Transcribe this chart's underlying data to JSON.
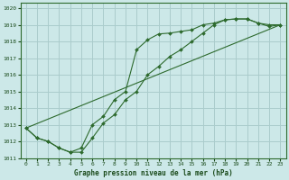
{
  "title": "Graphe pression niveau de la mer (hPa)",
  "bg_color": "#cce8e8",
  "grid_color": "#aacccc",
  "line_color": "#2d6a2d",
  "xlim": [
    -0.5,
    23.5
  ],
  "ylim": [
    1011,
    1020.3
  ],
  "xticks": [
    0,
    1,
    2,
    3,
    4,
    5,
    6,
    7,
    8,
    9,
    10,
    11,
    12,
    13,
    14,
    15,
    16,
    17,
    18,
    19,
    20,
    21,
    22,
    23
  ],
  "yticks": [
    1011,
    1012,
    1013,
    1014,
    1015,
    1016,
    1017,
    1018,
    1019,
    1020
  ],
  "line1_x": [
    0,
    1,
    2,
    3,
    4,
    5,
    6,
    7,
    8,
    9,
    10,
    11,
    12,
    13,
    14,
    15,
    16,
    17,
    18,
    19,
    20,
    21,
    22,
    23
  ],
  "line1_y": [
    1012.8,
    1012.2,
    1012.0,
    1011.6,
    1011.35,
    1011.35,
    1012.2,
    1013.1,
    1013.6,
    1014.5,
    1015.0,
    1016.0,
    1016.5,
    1017.1,
    1017.5,
    1018.0,
    1018.5,
    1019.0,
    1019.3,
    1019.35,
    1019.35,
    1019.1,
    1018.9,
    1019.0
  ],
  "line2_x": [
    0,
    1,
    2,
    3,
    4,
    5,
    6,
    7,
    8,
    9,
    10,
    11,
    12,
    13,
    14,
    15,
    16,
    17,
    18,
    19,
    20,
    21,
    22,
    23
  ],
  "line2_y": [
    1012.8,
    1012.2,
    1012.0,
    1011.6,
    1011.35,
    1011.6,
    1013.0,
    1013.5,
    1014.5,
    1015.0,
    1017.5,
    1018.1,
    1018.45,
    1018.5,
    1018.6,
    1018.7,
    1019.0,
    1019.1,
    1019.3,
    1019.35,
    1019.35,
    1019.1,
    1019.0,
    1019.0
  ],
  "line3_x": [
    0,
    23
  ],
  "line3_y": [
    1012.8,
    1019.0
  ]
}
